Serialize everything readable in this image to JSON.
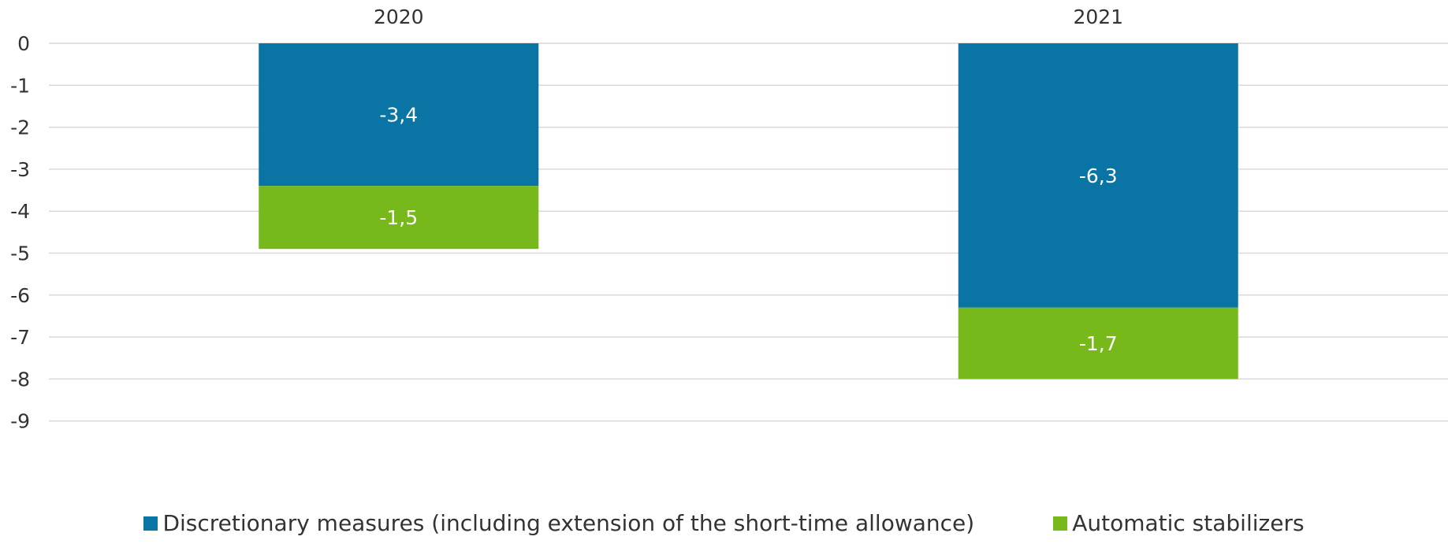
{
  "chart_data": {
    "type": "bar",
    "stacked": true,
    "categories": [
      "2020",
      "2021"
    ],
    "category_axis_position": "top",
    "series": [
      {
        "name": "Discretionary measures (including extension of the short-time allowance)",
        "values": [
          -3.4,
          -6.3
        ],
        "labels": [
          "-3,4",
          "-6,3"
        ],
        "color": "#0a75a5"
      },
      {
        "name": "Automatic stabilizers",
        "values": [
          -1.5,
          -1.7
        ],
        "labels": [
          "-1,5",
          "-1,7"
        ],
        "color": "#77b91a"
      }
    ],
    "ylim": [
      -9,
      0
    ],
    "yticks": [
      "0",
      "-1",
      "-2",
      "-3",
      "-4",
      "-5",
      "-6",
      "-7",
      "-8",
      "-9"
    ],
    "grid": true,
    "legend": "bottom-center",
    "title": "",
    "xlabel": "",
    "ylabel": ""
  }
}
